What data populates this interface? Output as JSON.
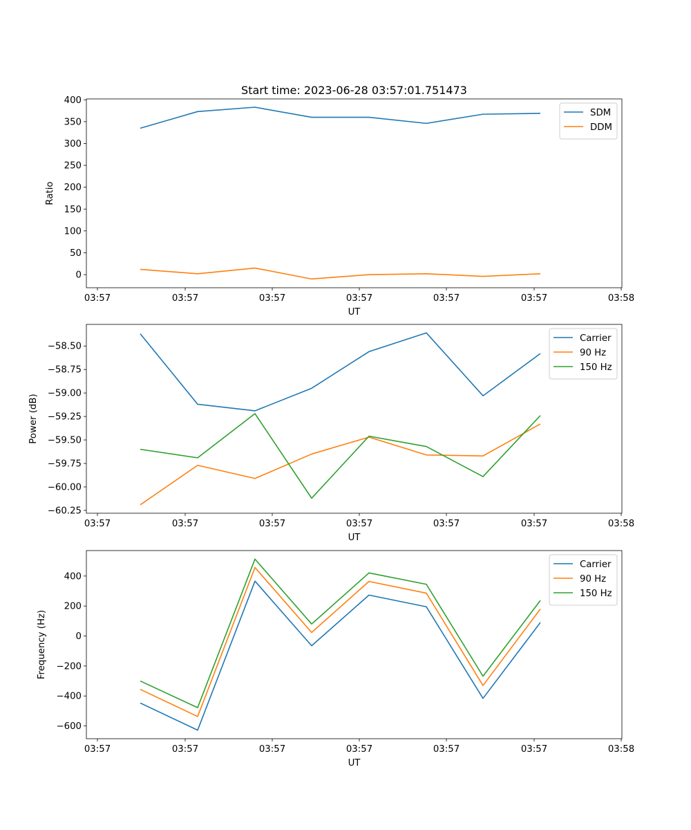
{
  "title": "Start time: 2023-06-28 03:57:01.751473",
  "chart_data": [
    {
      "type": "line",
      "title": "Start time: 2023-06-28 03:57:01.751473",
      "xlabel": "UT",
      "ylabel": "Ratio",
      "x_tick_labels": [
        "03:57",
        "03:57",
        "03:57",
        "03:57",
        "03:57",
        "03:57",
        "03:57"
      ],
      "x_last_tick_label": "03:58",
      "y_ticks": [
        0,
        50,
        100,
        150,
        200,
        250,
        300,
        350,
        400
      ],
      "ylim": [
        -30,
        402
      ],
      "legend_position": "upper right",
      "series": [
        {
          "name": "SDM",
          "color": "#1f77b4",
          "values": [
            335,
            373,
            383,
            360,
            360,
            346,
            367,
            369
          ]
        },
        {
          "name": "DDM",
          "color": "#ff7f0e",
          "values": [
            12,
            2,
            15,
            -10,
            0,
            2,
            -4,
            2
          ]
        }
      ]
    },
    {
      "type": "line",
      "xlabel": "UT",
      "ylabel": "Power (dB)",
      "x_tick_labels": [
        "03:57",
        "03:57",
        "03:57",
        "03:57",
        "03:57",
        "03:57",
        "03:57"
      ],
      "x_last_tick_label": "03:58",
      "y_ticks": [
        -60.25,
        -60.0,
        -59.75,
        -59.5,
        -59.25,
        -59.0,
        -58.75,
        -58.5
      ],
      "y_tick_labels": [
        "−60.25",
        "−60.00",
        "−59.75",
        "−59.50",
        "−59.25",
        "−59.00",
        "−58.75",
        "−58.50"
      ],
      "ylim": [
        -60.28,
        -58.27
      ],
      "legend_position": "upper right",
      "series": [
        {
          "name": "Carrier",
          "color": "#1f77b4",
          "values": [
            -58.37,
            -59.12,
            -59.19,
            -58.95,
            -58.56,
            -58.36,
            -59.03,
            -58.58
          ]
        },
        {
          "name": "90 Hz",
          "color": "#ff7f0e",
          "values": [
            -60.19,
            -59.77,
            -59.91,
            -59.65,
            -59.47,
            -59.66,
            -59.67,
            -59.33
          ]
        },
        {
          "name": "150 Hz",
          "color": "#2ca02c",
          "values": [
            -59.6,
            -59.69,
            -59.22,
            -60.12,
            -59.46,
            -59.57,
            -59.89,
            -59.24
          ]
        }
      ]
    },
    {
      "type": "line",
      "xlabel": "UT",
      "ylabel": "Frequency (Hz)",
      "x_tick_labels": [
        "03:57",
        "03:57",
        "03:57",
        "03:57",
        "03:57",
        "03:57",
        "03:57"
      ],
      "x_last_tick_label": "03:58",
      "y_ticks": [
        -600,
        -400,
        -200,
        0,
        200,
        400
      ],
      "y_tick_labels": [
        "−600",
        "−400",
        "−200",
        "0",
        "200",
        "400"
      ],
      "ylim": [
        -685,
        570
      ],
      "legend_position": "upper right",
      "series": [
        {
          "name": "Carrier",
          "color": "#1f77b4",
          "values": [
            -447,
            -628,
            366,
            -65,
            273,
            195,
            -416,
            90
          ]
        },
        {
          "name": "90 Hz",
          "color": "#ff7f0e",
          "values": [
            -356,
            -537,
            457,
            24,
            364,
            286,
            -330,
            180
          ]
        },
        {
          "name": "150 Hz",
          "color": "#2ca02c",
          "values": [
            -300,
            -478,
            513,
            80,
            421,
            345,
            -268,
            237
          ]
        }
      ]
    }
  ]
}
